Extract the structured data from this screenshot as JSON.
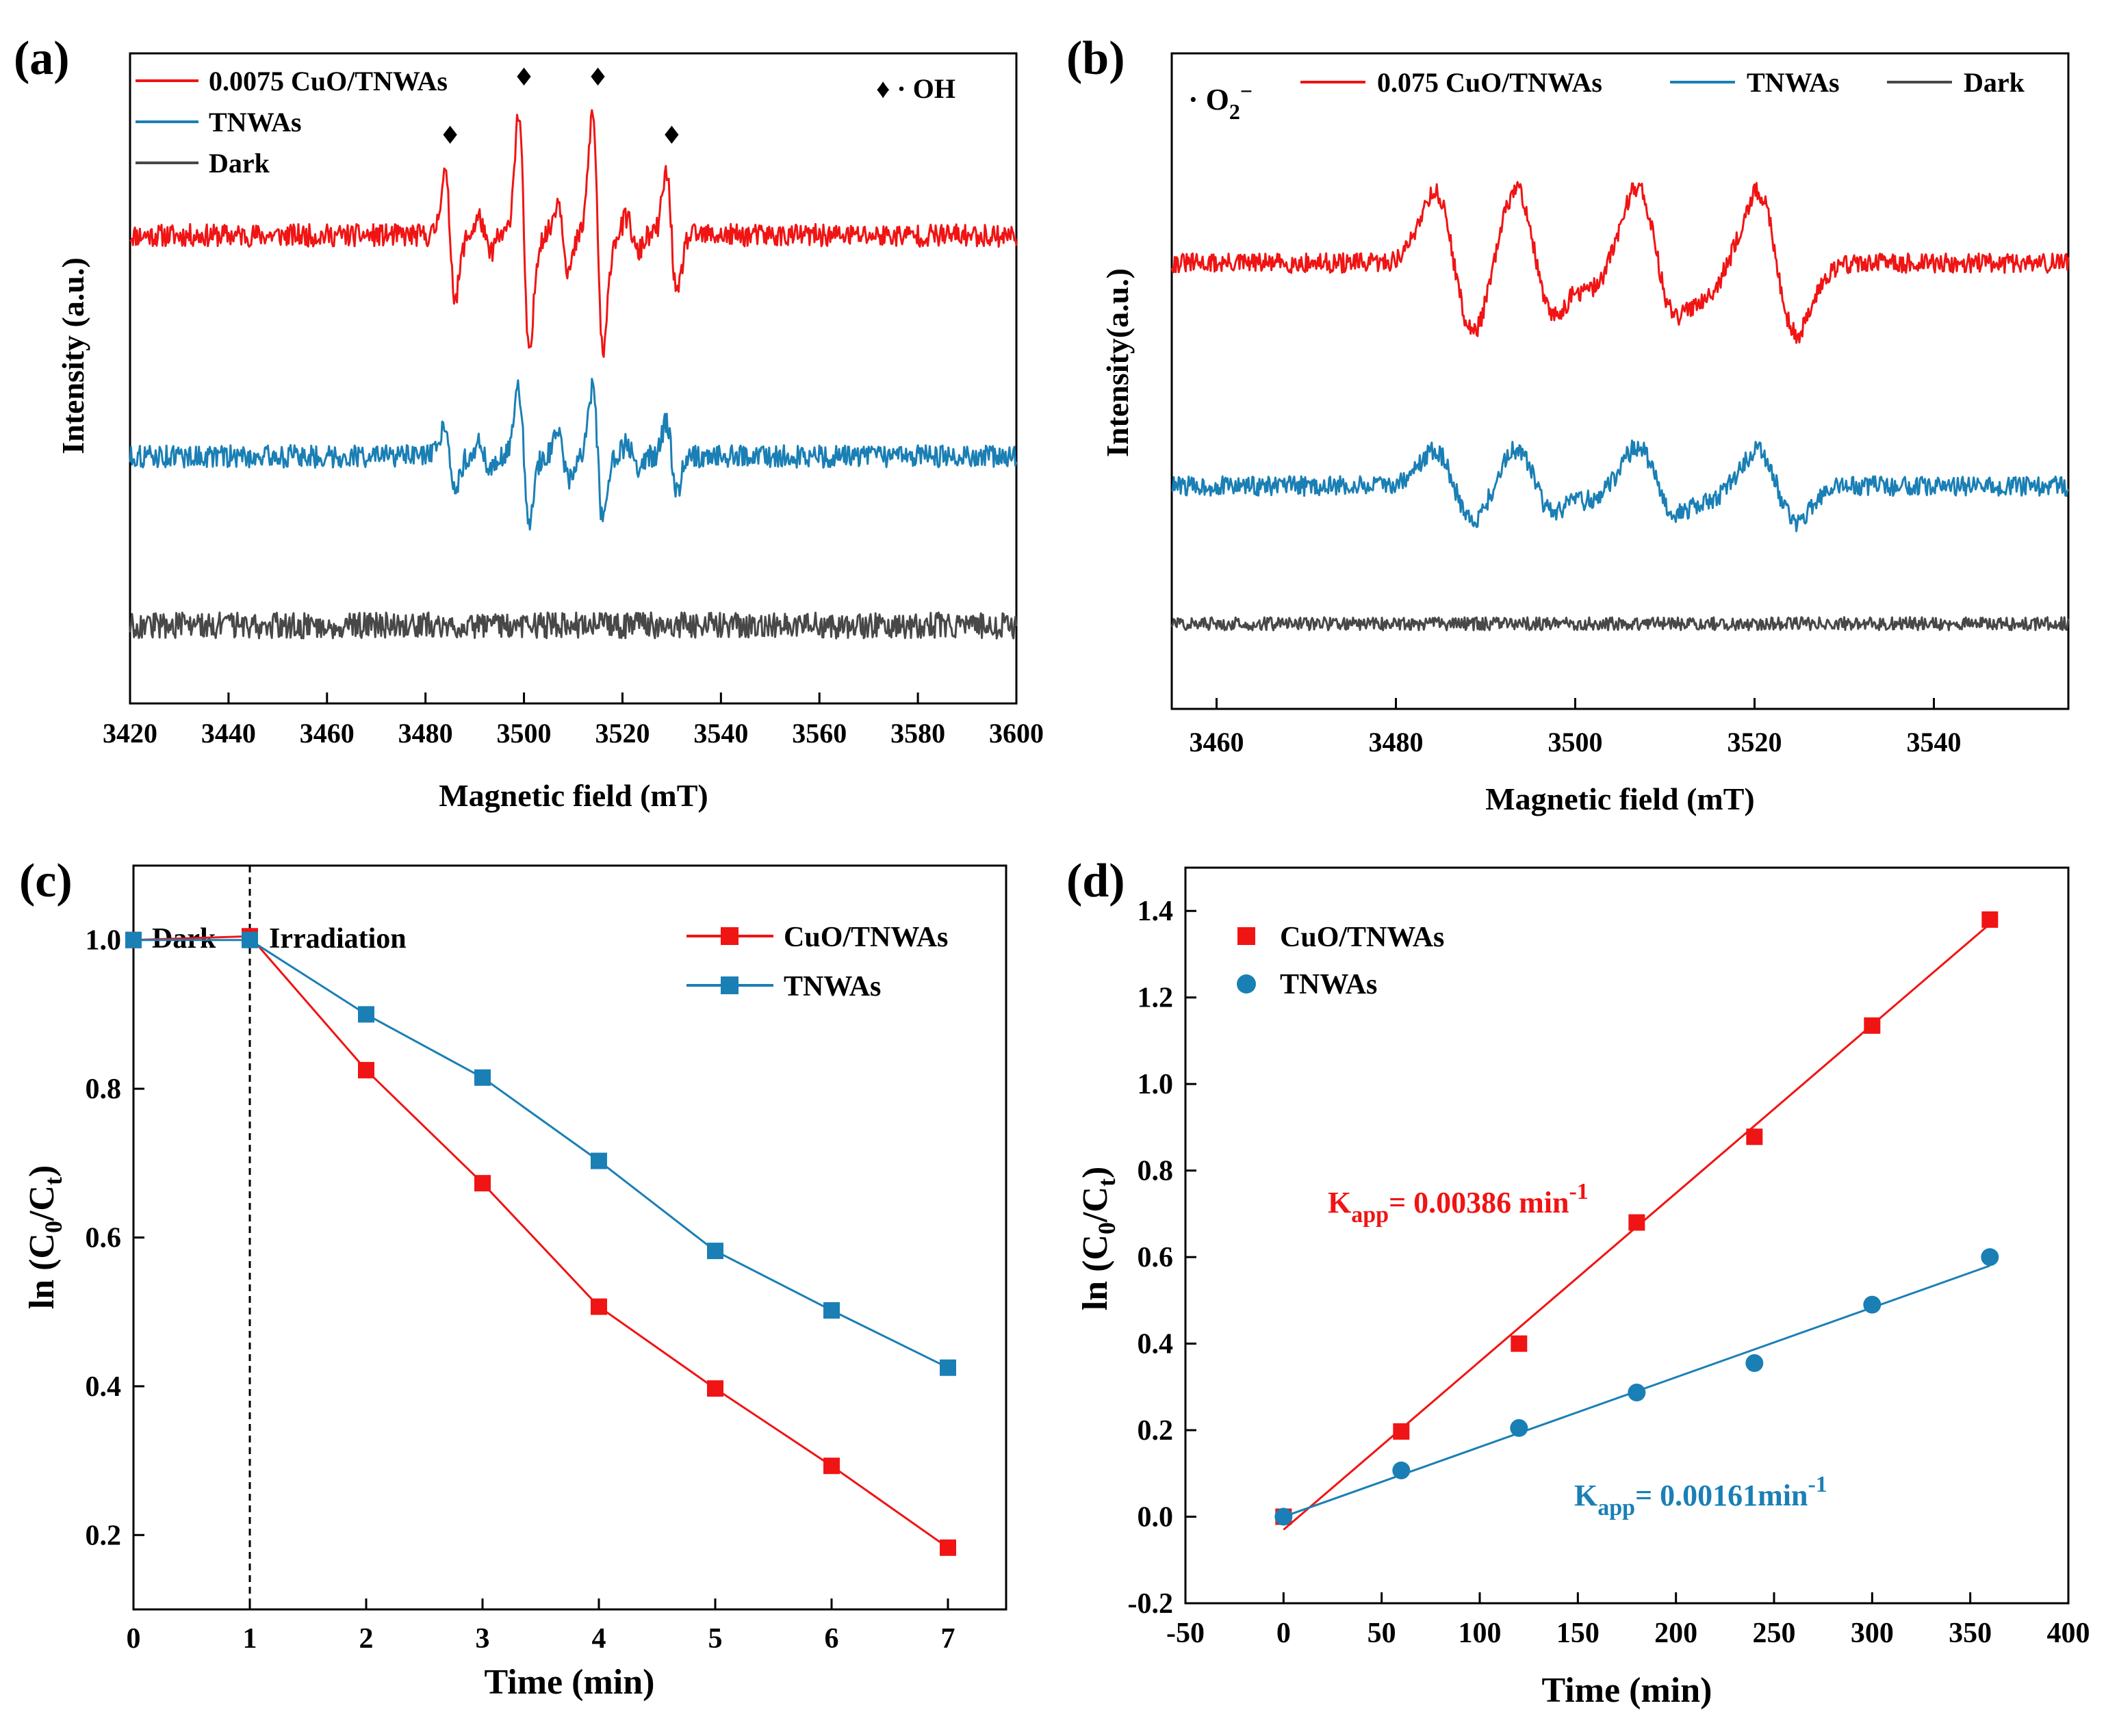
{
  "colors": {
    "red": "#f01414",
    "blue": "#1a7fb5",
    "dark": "#484848",
    "axis": "#000000"
  },
  "chart_data": [
    {
      "panel": "(a)",
      "type": "line",
      "title": "",
      "xlabel": "Magnetic field (mT)",
      "ylabel": "Intensity (a.u.)",
      "xlim": [
        3420,
        3600
      ],
      "xticks": [
        3420,
        3440,
        3460,
        3480,
        3500,
        3520,
        3540,
        3560,
        3580,
        3600
      ],
      "legend": [
        "0.0075 CuO/TNWAs",
        "TNWAs",
        "Dark"
      ],
      "legend_position": "top-left",
      "annotation": "♦ · OH",
      "annotation_marker": "♦",
      "marked_peaks": [
        3485,
        3500,
        3515,
        3530
      ],
      "series": [
        {
          "name": "0.0075 CuO/TNWAs",
          "color": "red",
          "baseline": 0.72,
          "amplitude": 1.0,
          "peaks": [
            {
              "x": 3485,
              "a": 0.28
            },
            {
              "x": 3492,
              "a": 0.08
            },
            {
              "x": 3500,
              "a": 0.55
            },
            {
              "x": 3508,
              "a": 0.16
            },
            {
              "x": 3515,
              "a": 0.55
            },
            {
              "x": 3522,
              "a": 0.08
            },
            {
              "x": 3530,
              "a": 0.28
            }
          ]
        },
        {
          "name": "TNWAs",
          "color": "blue",
          "baseline": 0.38,
          "amplitude": 0.55,
          "peaks": [
            {
              "x": 3485,
              "a": 0.28
            },
            {
              "x": 3492,
              "a": 0.1
            },
            {
              "x": 3500,
              "a": 0.55
            },
            {
              "x": 3508,
              "a": 0.18
            },
            {
              "x": 3515,
              "a": 0.55
            },
            {
              "x": 3522,
              "a": 0.1
            },
            {
              "x": 3530,
              "a": 0.28
            }
          ]
        },
        {
          "name": "Dark",
          "color": "dark",
          "baseline": 0.12,
          "amplitude": 0.0,
          "peaks": []
        }
      ]
    },
    {
      "panel": "(b)",
      "type": "line",
      "title": "",
      "xlabel": "Magnetic field (mT)",
      "ylabel": "Intensity(a.u.)",
      "xlim": [
        3455,
        3555
      ],
      "xticks": [
        3460,
        3480,
        3500,
        3520,
        3540
      ],
      "legend": [
        "0.075 CuO/TNWAs",
        "TNWAs",
        "Dark"
      ],
      "legend_position": "top",
      "annotation": "· O2−",
      "series": [
        {
          "name": "0.075 CuO/TNWAs",
          "color": "red",
          "baseline": 0.68,
          "amplitude": 1.0,
          "peaks": [
            {
              "x": 3486.5,
              "a": 0.62
            },
            {
              "x": 3495.5,
              "a": 0.66
            },
            {
              "x": 3500,
              "a": 0.2
            },
            {
              "x": 3509,
              "a": 0.66
            },
            {
              "x": 3513,
              "a": 0.2
            },
            {
              "x": 3522.5,
              "a": 0.62
            }
          ]
        },
        {
          "name": "TNWAs",
          "color": "blue",
          "baseline": 0.34,
          "amplitude": 0.5,
          "peaks": [
            {
              "x": 3486.5,
              "a": 0.62
            },
            {
              "x": 3495.5,
              "a": 0.66
            },
            {
              "x": 3500,
              "a": 0.2
            },
            {
              "x": 3509,
              "a": 0.66
            },
            {
              "x": 3513,
              "a": 0.2
            },
            {
              "x": 3522.5,
              "a": 0.62
            }
          ]
        },
        {
          "name": "Dark",
          "color": "dark",
          "baseline": 0.13,
          "amplitude": 0.0,
          "peaks": []
        }
      ]
    },
    {
      "panel": "(c)",
      "type": "line",
      "title": "",
      "xlabel": "Time (min)",
      "ylabel": "ln (C0/Ct)",
      "xlim": [
        0,
        7.5
      ],
      "ylim": [
        0.1,
        1.1
      ],
      "xticks": [
        0,
        1,
        2,
        3,
        4,
        5,
        6,
        7
      ],
      "yticks": [
        0.2,
        0.4,
        0.6,
        0.8,
        1.0
      ],
      "divider_x": 1,
      "region_labels": [
        "Dark",
        "Irradiation"
      ],
      "legend": [
        "CuO/TNWAs",
        "TNWAs"
      ],
      "legend_position": "top-right",
      "x": [
        0,
        1,
        2,
        3,
        4,
        5,
        6,
        7
      ],
      "series": [
        {
          "name": "CuO/TNWAs",
          "color": "red",
          "values": [
            1.0,
            1.005,
            0.825,
            0.673,
            0.507,
            0.397,
            0.293,
            0.183
          ]
        },
        {
          "name": "TNWAs",
          "color": "blue",
          "values": [
            1.0,
            1.0,
            0.9,
            0.815,
            0.703,
            0.582,
            0.502,
            0.425
          ]
        }
      ]
    },
    {
      "panel": "(d)",
      "type": "scatter",
      "title": "",
      "xlabel": "Time (min)",
      "ylabel": "ln (C0/Ct)",
      "xlim": [
        -50,
        400
      ],
      "ylim": [
        -0.2,
        1.5
      ],
      "xticks": [
        -50,
        0,
        50,
        100,
        150,
        200,
        250,
        300,
        350,
        400
      ],
      "yticks": [
        -0.2,
        0.0,
        0.2,
        0.4,
        0.6,
        0.8,
        1.0,
        1.2,
        1.4
      ],
      "legend": [
        "CuO/TNWAs",
        "TNWAs"
      ],
      "legend_position": "top-left",
      "x": [
        0,
        60,
        120,
        180,
        240,
        300,
        360
      ],
      "series": [
        {
          "name": "CuO/TNWAs",
          "color": "red",
          "marker": "square",
          "values": [
            0.0,
            0.197,
            0.4,
            0.68,
            0.878,
            1.135,
            1.38
          ],
          "fit": [
            -0.03,
            1.37
          ],
          "k_label": "K",
          "k_sub": "app",
          "k_value": "= 0.00386 min",
          "k_sup": "-1"
        },
        {
          "name": "TNWAs",
          "color": "blue",
          "marker": "circle",
          "values": [
            0.0,
            0.107,
            0.205,
            0.287,
            0.355,
            0.49,
            0.6
          ],
          "fit": [
            0.0,
            0.58
          ],
          "k_label": "K",
          "k_sub": "app",
          "k_value": "= 0.00161min",
          "k_sup": "-1"
        }
      ]
    }
  ]
}
